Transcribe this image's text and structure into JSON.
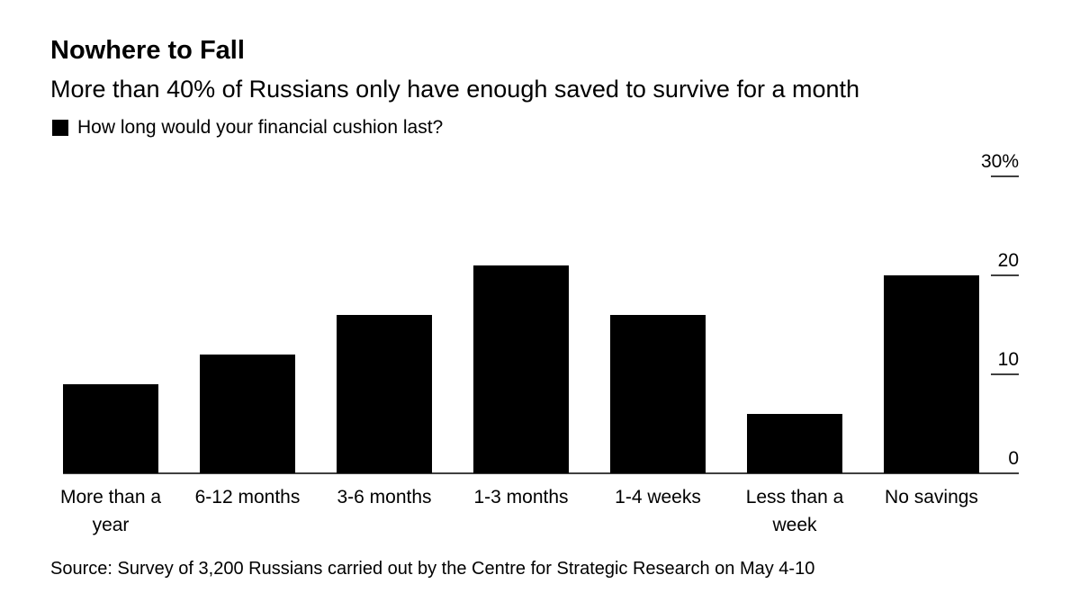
{
  "title": "Nowhere to Fall",
  "subtitle": "More than 40% of Russians only have enough saved to survive for a month",
  "source": "Source: Survey of 3,200 Russians carried out by the Centre for Strategic Research on May 4-10",
  "chart_data": {
    "type": "bar",
    "title": "Nowhere to Fall",
    "legend": [
      "How long would your financial cushion last?"
    ],
    "legend_placement": "top-left",
    "categories": [
      [
        "More than a",
        "year"
      ],
      [
        "6-12 months"
      ],
      [
        "3-6 months"
      ],
      [
        "1-3 months"
      ],
      [
        "1-4 weeks"
      ],
      [
        "Less than a",
        "week"
      ],
      [
        "No savings"
      ]
    ],
    "values": [
      9,
      12,
      16,
      21,
      16,
      6,
      20
    ],
    "color": "#000000",
    "ylim": [
      0,
      30
    ],
    "yticks": [
      0,
      10,
      20,
      30
    ],
    "ytick_labels": [
      "0",
      "10",
      "20",
      "30%"
    ],
    "y_axis_side": "right",
    "xlabel": "",
    "ylabel": "",
    "grid": false
  }
}
